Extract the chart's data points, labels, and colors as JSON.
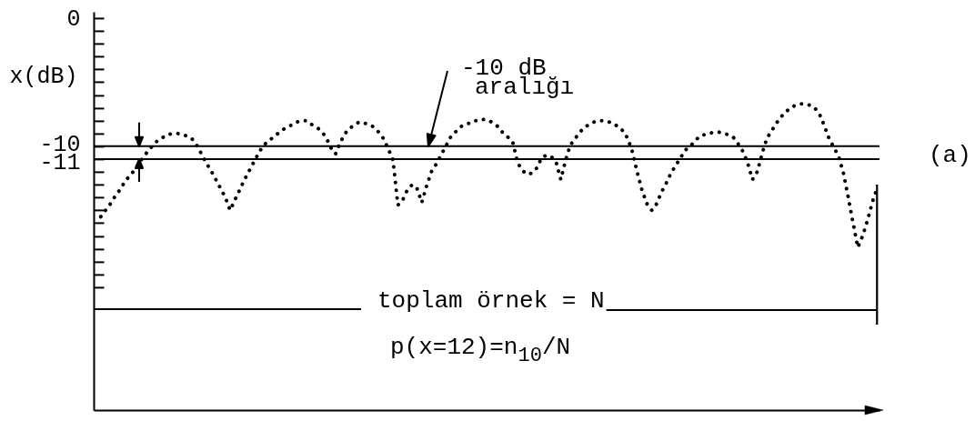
{
  "chart_data": {
    "type": "line",
    "ylabel": "x(dB)",
    "categories": [
      null,
      null,
      null,
      null,
      null,
      null,
      null,
      null,
      null,
      null,
      null,
      null,
      null,
      null,
      null,
      null,
      null,
      null,
      null,
      null,
      null,
      null,
      null,
      null,
      null,
      null,
      null,
      null,
      null,
      null,
      null,
      null,
      null,
      null,
      null,
      null,
      null,
      null,
      null,
      null,
      null,
      null,
      null,
      null,
      null,
      null,
      null,
      null,
      null,
      null,
      null,
      null,
      null,
      null,
      null,
      null,
      null,
      null,
      null,
      null,
      null,
      null,
      null,
      null,
      null,
      null,
      null,
      null,
      null,
      null,
      null,
      null,
      null,
      null,
      null,
      null,
      null,
      null,
      null,
      null,
      null,
      null,
      null,
      null,
      null,
      null,
      null,
      null,
      null,
      null,
      null,
      null,
      null,
      null,
      null,
      null,
      null,
      null,
      null,
      null,
      null,
      null,
      null,
      null,
      null,
      null,
      null,
      null,
      null,
      null,
      null,
      null,
      null,
      null,
      null,
      null,
      null,
      null,
      null,
      null,
      null,
      null,
      null,
      null,
      null,
      null,
      null,
      null,
      null,
      null,
      null,
      null,
      null,
      null,
      null,
      null,
      null,
      null,
      null,
      null,
      null,
      null,
      null,
      null,
      null,
      null,
      null,
      null,
      null,
      null,
      null,
      null,
      null,
      null,
      null,
      null,
      null,
      null,
      null,
      null,
      null,
      null,
      null
    ],
    "series": [
      {
        "color": "#000000",
        "values": [
          -15.5,
          -15.0,
          -14.5,
          -13.9,
          -13.4,
          -12.8,
          -12.3,
          -11.9,
          -11.3,
          -10.8,
          -10.3,
          -9.9,
          -9.5,
          -9.3,
          -9.1,
          -9.0,
          -9.0,
          -9.1,
          -9.2,
          -9.4,
          -9.9,
          -10.6,
          -11.3,
          -11.9,
          -12.6,
          -13.3,
          -14.0,
          -15.0,
          -14.2,
          -13.4,
          -12.6,
          -11.9,
          -11.2,
          -10.5,
          -9.9,
          -9.6,
          -9.3,
          -9.0,
          -8.7,
          -8.5,
          -8.3,
          -8.1,
          -8.0,
          -8.0,
          -8.3,
          -8.5,
          -8.8,
          -9.3,
          -10.1,
          -10.6,
          -9.7,
          -9.0,
          -8.6,
          -8.3,
          -8.1,
          -8.2,
          -8.3,
          -8.5,
          -8.9,
          -9.4,
          -10.2,
          -11.1,
          -14.6,
          -14.2,
          -13.4,
          -13.0,
          -13.3,
          -14.4,
          -13.1,
          -12.0,
          -11.4,
          -10.7,
          -10.0,
          -9.3,
          -8.9,
          -8.5,
          -8.3,
          -8.2,
          -8.0,
          -8.0,
          -7.9,
          -8.0,
          -8.2,
          -8.5,
          -9.0,
          -9.3,
          -9.7,
          -11.3,
          -11.9,
          -12.2,
          -12.1,
          -11.7,
          -10.9,
          -10.7,
          -10.8,
          -11.2,
          -12.6,
          -11.1,
          -9.9,
          -9.4,
          -8.9,
          -8.5,
          -8.3,
          -8.1,
          -8.0,
          -8.0,
          -8.1,
          -8.2,
          -8.5,
          -8.8,
          -9.4,
          -10.5,
          -12.1,
          -13.5,
          -14.5,
          -15.0,
          -14.5,
          -13.6,
          -12.9,
          -12.1,
          -11.5,
          -10.9,
          -10.3,
          -10.0,
          -9.6,
          -9.2,
          -9.1,
          -9.0,
          -8.9,
          -8.9,
          -9.0,
          -9.1,
          -9.3,
          -9.8,
          -10.4,
          -11.3,
          -12.6,
          -12.0,
          -10.6,
          -9.4,
          -8.8,
          -8.2,
          -7.7,
          -7.3,
          -7.0,
          -6.8,
          -6.7,
          -6.7,
          -6.8,
          -7.0,
          -7.5,
          -8.4,
          -9.4,
          -10.1,
          -10.8,
          -12.1,
          -14.0,
          -16.0,
          -17.9,
          -17.0,
          -15.8,
          -14.4,
          -13.3
        ]
      }
    ],
    "ylim": [
      -30.6,
      0.5
    ],
    "yticks": [
      0,
      {
        "value": -1,
        "label": null
      },
      {
        "value": -2,
        "label": null
      },
      {
        "value": -3,
        "label": null
      },
      {
        "value": -4,
        "label": null
      },
      {
        "value": -5,
        "label": null
      },
      {
        "value": -6,
        "label": null
      },
      {
        "value": -7,
        "label": null
      },
      {
        "value": -8,
        "label": null
      },
      {
        "value": -9,
        "label": null
      },
      -10,
      -11,
      {
        "value": -12,
        "label": null
      },
      {
        "value": -13,
        "label": null
      },
      {
        "value": -14,
        "label": null
      },
      {
        "value": -15,
        "label": null
      },
      {
        "value": -16,
        "label": null
      },
      {
        "value": -17,
        "label": null
      },
      {
        "value": -18,
        "label": null
      },
      {
        "value": -19,
        "label": null
      },
      {
        "value": -20,
        "label": null
      },
      {
        "value": -21,
        "label": null
      }
    ],
    "ref_lines": [
      {
        "axis": "y",
        "value": -10
      },
      {
        "axis": "y",
        "value": -11
      }
    ],
    "line_style": "dotted",
    "tick_labels": "y",
    "annotations": [
      "-10 dB\naralığı",
      "toplam örnek = N",
      "p(x=12)=n$_{10}$/N",
      "(a)"
    ]
  }
}
